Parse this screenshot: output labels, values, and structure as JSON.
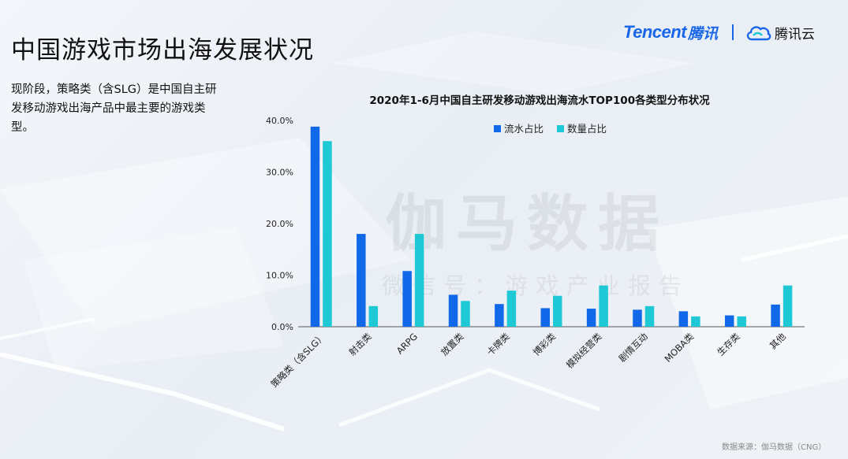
{
  "page": {
    "title": "中国游戏市场出海发展状况",
    "summary": "现阶段，策略类（含SLG）是中国自主研发移动游戏出海产品中最主要的游戏类型。",
    "brand": {
      "tencent": "Tencent",
      "tencent_cn": "腾讯",
      "cloud": "腾讯云"
    },
    "watermark": "伽马数据",
    "watermark_sub": "微信号：游戏产业报告",
    "source": "数据来源：伽马数据（CNG）"
  },
  "colors": {
    "series1": "#1168e8",
    "series2": "#1ec8d4",
    "brand": "#1a66e8"
  },
  "chart_data": {
    "type": "bar",
    "title": "2020年1-6月中国自主研发移动游戏出海流水TOP100各类型分布状况",
    "categories": [
      "策略类（含SLG）",
      "射击类",
      "ARPG",
      "放置类",
      "卡牌类",
      "博彩类",
      "模拟经营类",
      "剧情互动",
      "MOBA类",
      "生存类",
      "其他"
    ],
    "series": [
      {
        "name": "流水占比",
        "values": [
          38.8,
          18.0,
          10.8,
          6.2,
          4.4,
          3.6,
          3.5,
          3.3,
          3.0,
          2.2,
          4.3
        ]
      },
      {
        "name": "数量占比",
        "values": [
          36.0,
          4.0,
          18.0,
          5.0,
          7.0,
          6.0,
          8.0,
          4.0,
          2.0,
          2.0,
          8.0
        ]
      }
    ],
    "ylim": [
      0,
      40
    ],
    "yticks": [
      "0.0%",
      "10.0%",
      "20.0%",
      "30.0%",
      "40.0%"
    ],
    "xlabel": "",
    "ylabel": "",
    "legend": "top-center"
  }
}
